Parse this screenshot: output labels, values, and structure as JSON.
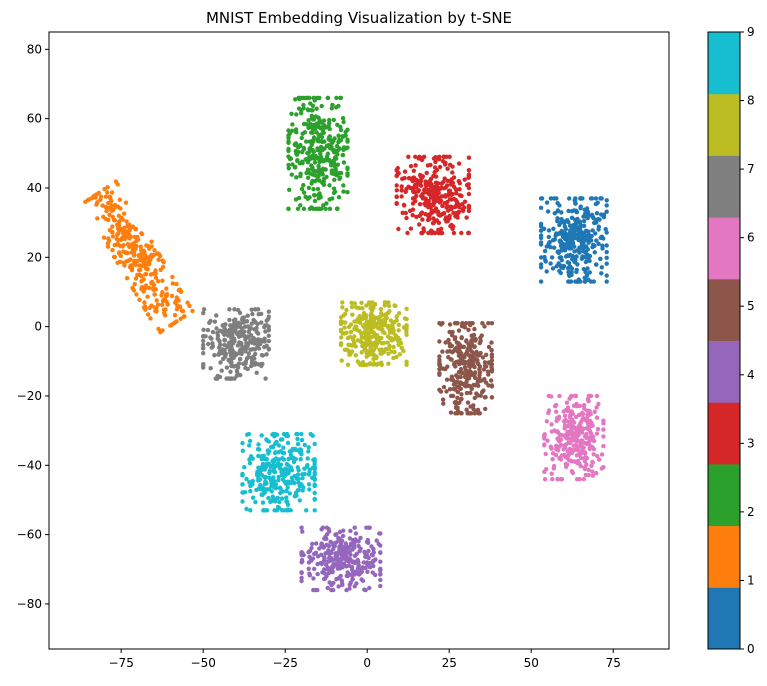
{
  "chart_data": {
    "type": "scatter",
    "title": "MNIST Embedding Visualization by t-SNE",
    "xlim": [
      -97,
      92
    ],
    "ylim": [
      -93,
      85
    ],
    "x_ticks": [
      -75,
      -50,
      -25,
      0,
      25,
      50,
      75
    ],
    "y_ticks": [
      -80,
      -60,
      -40,
      -20,
      0,
      20,
      40,
      60,
      80
    ],
    "colorbar": {
      "range": [
        0,
        9
      ],
      "ticks": [
        0,
        1,
        2,
        3,
        4,
        5,
        6,
        7,
        8,
        9
      ],
      "colors": [
        "#1f77b4",
        "#ff7f0e",
        "#2ca02c",
        "#d62728",
        "#9467bd",
        "#8c564b",
        "#e377c2",
        "#7f7f7f",
        "#bcbd22",
        "#17becf"
      ]
    },
    "clusters": [
      {
        "label": 0,
        "center": [
          63,
          25
        ],
        "spread": [
          10,
          12
        ],
        "n": 340
      },
      {
        "label": 1,
        "center": [
          -70,
          20
        ],
        "spread": [
          6,
          22
        ],
        "rotation_deg": 32,
        "n": 320
      },
      {
        "label": 2,
        "center": [
          -15,
          50
        ],
        "spread": [
          9,
          16
        ],
        "n": 340
      },
      {
        "label": 3,
        "center": [
          20,
          38
        ],
        "spread": [
          11,
          11
        ],
        "n": 320
      },
      {
        "label": 4,
        "center": [
          -8,
          -67
        ],
        "spread": [
          12,
          9
        ],
        "n": 300
      },
      {
        "label": 5,
        "center": [
          30,
          -12
        ],
        "spread": [
          8,
          13
        ],
        "n": 300
      },
      {
        "label": 6,
        "center": [
          63,
          -32
        ],
        "spread": [
          9,
          12
        ],
        "n": 300
      },
      {
        "label": 7,
        "center": [
          -40,
          -5
        ],
        "spread": [
          10,
          10
        ],
        "n": 300
      },
      {
        "label": 8,
        "center": [
          2,
          -2
        ],
        "spread": [
          10,
          9
        ],
        "n": 300
      },
      {
        "label": 9,
        "center": [
          -27,
          -42
        ],
        "spread": [
          11,
          11
        ],
        "n": 300
      }
    ]
  }
}
